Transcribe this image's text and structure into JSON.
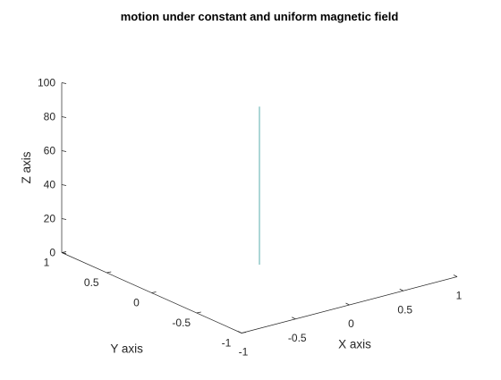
{
  "chart_data": {
    "type": "line",
    "projection": "3d",
    "title": "motion under constant and uniform magnetic field",
    "xlabel": "X axis",
    "ylabel": "Y axis",
    "zlabel": "Z axis",
    "xlim": [
      -1,
      1
    ],
    "ylim": [
      -1,
      1
    ],
    "zlim": [
      0,
      100
    ],
    "xticks": [
      "-1",
      "-0.5",
      "0",
      "0.5",
      "1"
    ],
    "yticks": [
      "-1",
      "-0.5",
      "0",
      "0.5",
      "1"
    ],
    "zticks": [
      "0",
      "20",
      "40",
      "60",
      "80",
      "100"
    ],
    "grid": false,
    "series": [
      {
        "color": "#5aaeae",
        "x": [
          0,
          0
        ],
        "y": [
          0,
          0
        ],
        "z": [
          0,
          93
        ]
      }
    ]
  },
  "colors": {
    "axis": "#262626",
    "background": "#ffffff"
  }
}
